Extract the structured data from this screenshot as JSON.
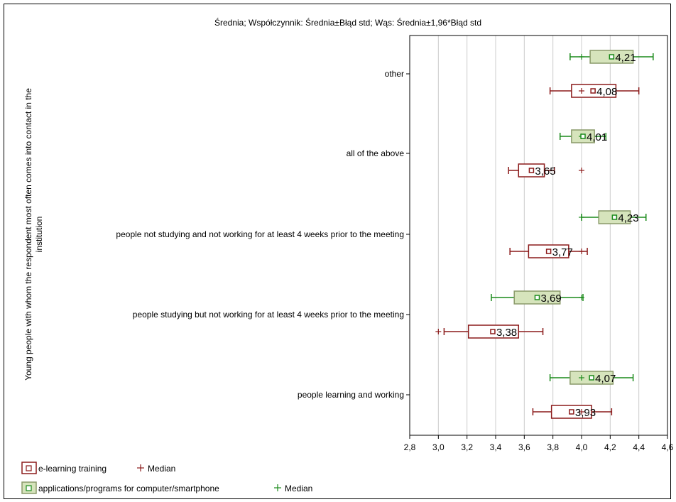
{
  "chart_data": {
    "type": "box",
    "title": "Średnia; Współczynnik: Średnia±Błąd std; Wąs: Średnia±1,96*Błąd std",
    "ylabel": "Young people with whom the respondent most often comes into contact in the institution",
    "xlabel": "",
    "xlim": [
      2.8,
      4.6
    ],
    "xticks": [
      2.8,
      3.0,
      3.2,
      3.4,
      3.6,
      3.8,
      4.0,
      4.2,
      4.4,
      4.6
    ],
    "xtick_labels": [
      "2,8",
      "3,0",
      "3,2",
      "3,4",
      "3,6",
      "3,8",
      "4,0",
      "4,2",
      "4,4",
      "4,6"
    ],
    "grid": true,
    "categories": [
      "other",
      "all of the above",
      "people not studying and not working for at least 4 weeks prior to the meeting",
      "people studying but not working for at least 4 weeks prior to the meeting",
      "people learning and working"
    ],
    "series": [
      {
        "name": "applications/programs for computer/smartphone",
        "color": "#1a8a1a",
        "fill": "#d6e4bc",
        "mean": [
          4.21,
          4.01,
          4.23,
          3.69,
          4.07
        ],
        "mean_labels": [
          "4,21",
          "4,01",
          "4,23",
          "3,69",
          "4,07"
        ],
        "se_low": [
          4.06,
          3.93,
          4.12,
          3.53,
          3.92
        ],
        "se_high": [
          4.36,
          4.09,
          4.34,
          3.85,
          4.22
        ],
        "ci_low": [
          3.92,
          3.85,
          4.0,
          3.37,
          3.78
        ],
        "ci_high": [
          4.5,
          4.17,
          4.45,
          4.01,
          4.36
        ],
        "median": [
          4.0,
          4.0,
          4.0,
          4.0,
          4.0
        ]
      },
      {
        "name": "e-learning training",
        "color": "#8b1a1a",
        "fill": "#ffffff",
        "mean": [
          4.08,
          3.65,
          3.77,
          3.38,
          3.93
        ],
        "mean_labels": [
          "4,08",
          "3,65",
          "3,77",
          "3,38",
          "3,93"
        ],
        "se_low": [
          3.93,
          3.56,
          3.63,
          3.21,
          3.79
        ],
        "se_high": [
          4.24,
          3.74,
          3.91,
          3.56,
          4.07
        ],
        "ci_low": [
          3.78,
          3.49,
          3.5,
          3.04,
          3.66
        ],
        "ci_high": [
          4.4,
          3.81,
          4.04,
          3.73,
          4.21
        ],
        "median": [
          4.0,
          4.0,
          4.0,
          3.0,
          4.0
        ]
      }
    ],
    "legend": [
      {
        "label": "e-learning training",
        "median_label": "Median"
      },
      {
        "label": "applications/programs for computer/smartphone",
        "median_label": "Median"
      }
    ],
    "legend_position": "bottom-left"
  }
}
